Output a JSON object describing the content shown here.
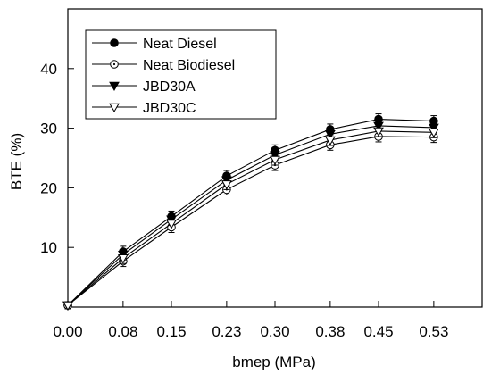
{
  "chart_data": {
    "type": "line",
    "xlabel": "bmep (MPa)",
    "ylabel": "BTE (%)",
    "x": [
      0.0,
      0.08,
      0.15,
      0.23,
      0.3,
      0.38,
      0.45,
      0.53
    ],
    "x_tick_labels": [
      "0.00",
      "0.08",
      "0.15",
      "0.23",
      "0.30",
      "0.38",
      "0.45",
      "0.53"
    ],
    "xlim": [
      0.0,
      0.6
    ],
    "ylim": [
      0,
      50
    ],
    "y_ticks": [
      10,
      20,
      30,
      40
    ],
    "grid": false,
    "legend_position": "top-left",
    "error_bars": true,
    "series": [
      {
        "name": "Neat Diesel",
        "marker": "filled-circle",
        "values": [
          0.3,
          9.3,
          15.2,
          22.0,
          26.3,
          29.8,
          31.5,
          31.2
        ],
        "errors": [
          0.6,
          0.9,
          0.9,
          0.9,
          0.9,
          0.9,
          0.9,
          0.9
        ]
      },
      {
        "name": "Neat Biodiesel",
        "marker": "open-circle",
        "values": [
          0.3,
          7.7,
          13.4,
          19.7,
          23.8,
          27.2,
          28.6,
          28.5
        ],
        "errors": [
          0.6,
          0.9,
          0.9,
          0.9,
          0.9,
          0.9,
          0.9,
          0.9
        ]
      },
      {
        "name": "JBD30A",
        "marker": "filled-triangle-down",
        "values": [
          0.3,
          8.8,
          14.7,
          21.3,
          25.5,
          29.0,
          30.4,
          30.1
        ],
        "errors": [
          0.6,
          0.9,
          0.9,
          0.9,
          0.9,
          0.9,
          0.9,
          0.9
        ]
      },
      {
        "name": "JBD30C",
        "marker": "open-triangle-down",
        "values": [
          0.3,
          8.2,
          14.0,
          20.6,
          24.7,
          28.0,
          29.5,
          29.3
        ],
        "errors": [
          0.6,
          0.9,
          0.9,
          0.9,
          0.9,
          0.9,
          0.9,
          0.9
        ]
      }
    ]
  }
}
